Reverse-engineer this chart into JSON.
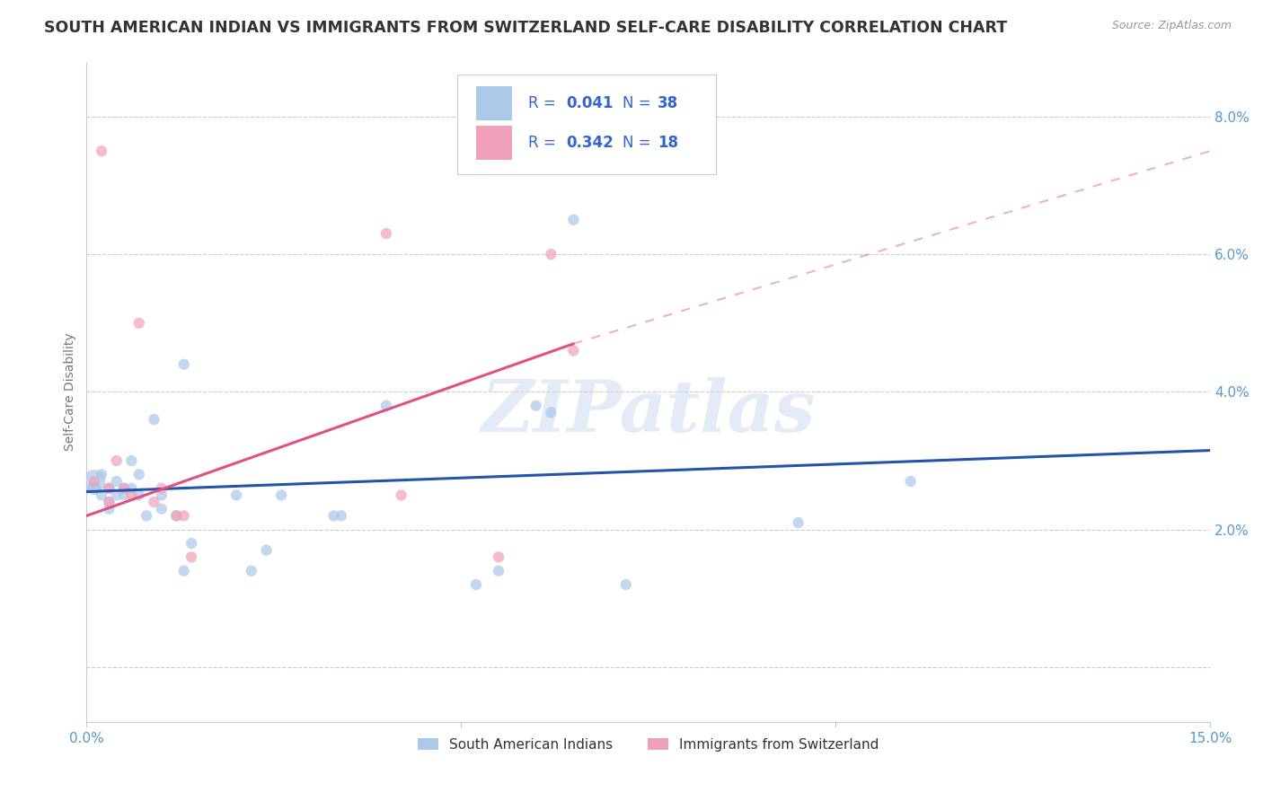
{
  "title": "SOUTH AMERICAN INDIAN VS IMMIGRANTS FROM SWITZERLAND SELF-CARE DISABILITY CORRELATION CHART",
  "source": "Source: ZipAtlas.com",
  "ylabel": "Self-Care Disability",
  "xlim": [
    0.0,
    0.15
  ],
  "ylim": [
    -0.008,
    0.088
  ],
  "watermark": "ZIPatlas",
  "series1_label": "South American Indians",
  "series1_R": "0.041",
  "series1_N": "38",
  "series1_color": "#aac8e8",
  "series1_line_color": "#2255aa",
  "series1_x": [
    0.001,
    0.001,
    0.002,
    0.002,
    0.003,
    0.003,
    0.003,
    0.004,
    0.004,
    0.005,
    0.005,
    0.006,
    0.006,
    0.007,
    0.007,
    0.008,
    0.009,
    0.01,
    0.01,
    0.012,
    0.013,
    0.013,
    0.014,
    0.02,
    0.022,
    0.024,
    0.026,
    0.033,
    0.034,
    0.04,
    0.052,
    0.055,
    0.06,
    0.062,
    0.065,
    0.072,
    0.095,
    0.11
  ],
  "series1_y": [
    0.027,
    0.026,
    0.028,
    0.025,
    0.026,
    0.024,
    0.023,
    0.027,
    0.025,
    0.026,
    0.025,
    0.03,
    0.026,
    0.025,
    0.028,
    0.022,
    0.036,
    0.025,
    0.023,
    0.022,
    0.044,
    0.014,
    0.018,
    0.025,
    0.014,
    0.017,
    0.025,
    0.022,
    0.022,
    0.038,
    0.012,
    0.014,
    0.038,
    0.037,
    0.065,
    0.012,
    0.021,
    0.027
  ],
  "series1_sizes": [
    350,
    120,
    80,
    80,
    80,
    80,
    80,
    80,
    80,
    80,
    80,
    80,
    80,
    80,
    80,
    80,
    80,
    80,
    80,
    80,
    80,
    80,
    80,
    80,
    80,
    80,
    80,
    80,
    80,
    80,
    80,
    80,
    80,
    80,
    80,
    80,
    80,
    80
  ],
  "series2_label": "Immigrants from Switzerland",
  "series2_R": "0.342",
  "series2_N": "18",
  "series2_color": "#f0a0b8",
  "series2_line_color": "#e05080",
  "series2_x": [
    0.001,
    0.002,
    0.003,
    0.003,
    0.004,
    0.005,
    0.006,
    0.007,
    0.009,
    0.01,
    0.012,
    0.013,
    0.014,
    0.04,
    0.042,
    0.055,
    0.062,
    0.065
  ],
  "series2_y": [
    0.027,
    0.075,
    0.026,
    0.024,
    0.03,
    0.026,
    0.025,
    0.05,
    0.024,
    0.026,
    0.022,
    0.022,
    0.016,
    0.063,
    0.025,
    0.016,
    0.06,
    0.046
  ],
  "series2_sizes": [
    80,
    80,
    80,
    80,
    80,
    80,
    80,
    80,
    80,
    80,
    80,
    80,
    80,
    80,
    80,
    80,
    80,
    80
  ],
  "trend1_x0": 0.0,
  "trend1_x1": 0.15,
  "trend1_y0": 0.0255,
  "trend1_y1": 0.0315,
  "trend2_solid_x0": 0.0,
  "trend2_solid_x1": 0.065,
  "trend2_solid_y0": 0.022,
  "trend2_solid_y1": 0.047,
  "trend2_dash_x0": 0.065,
  "trend2_dash_x1": 0.15,
  "trend2_dash_y0": 0.047,
  "trend2_dash_y1": 0.075,
  "grid_color": "#cccccc",
  "background_color": "#ffffff",
  "title_color": "#333333",
  "tick_color": "#5599cc",
  "legend_text_color": "#3366cc"
}
